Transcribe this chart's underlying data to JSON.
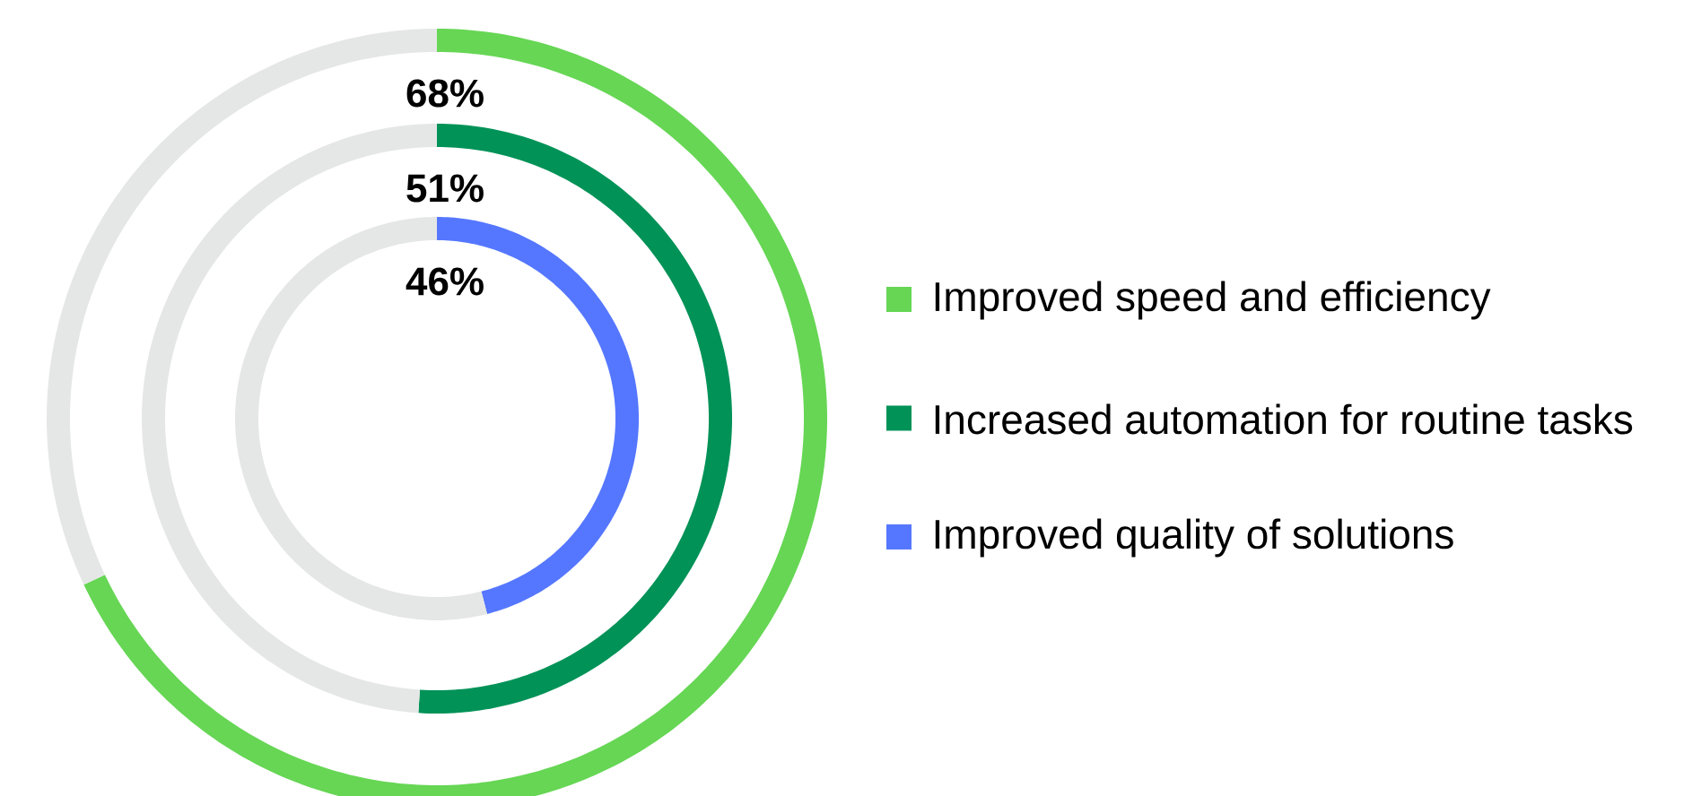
{
  "chart_data": [
    {
      "type": "donut",
      "categories": [
        "Improved speed and efficiency",
        null
      ],
      "values": [
        68,
        32
      ],
      "colors": [
        "#66d654",
        "#e5e7e6"
      ],
      "value_labels": [
        "68%",
        null
      ],
      "legend": "right"
    },
    {
      "type": "donut",
      "categories": [
        "Increased automation for routine tasks",
        null
      ],
      "values": [
        51,
        49
      ],
      "colors": [
        "#009257",
        "#e5e7e6"
      ],
      "value_labels": [
        "51%",
        null
      ],
      "legend": "right"
    },
    {
      "type": "donut",
      "categories": [
        "Improved quality of solutions",
        null
      ],
      "values": [
        46,
        54
      ],
      "colors": [
        "#5577ff",
        "#e5e7e6"
      ],
      "value_labels": [
        "46%",
        null
      ],
      "legend": "right"
    }
  ]
}
